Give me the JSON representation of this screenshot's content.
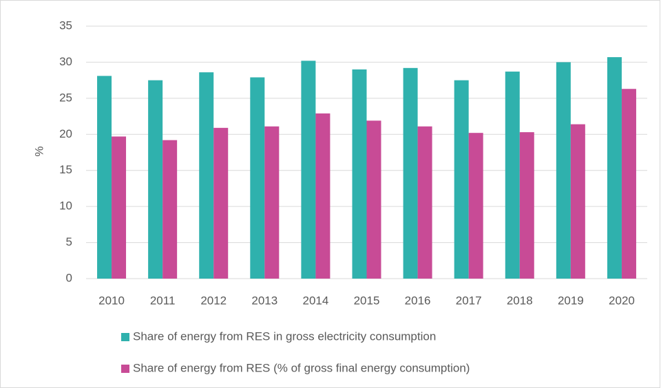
{
  "chart_data": {
    "type": "bar",
    "y_label": "%",
    "categories": [
      "2010",
      "2011",
      "2012",
      "2013",
      "2014",
      "2015",
      "2016",
      "2017",
      "2018",
      "2019",
      "2020"
    ],
    "series": [
      {
        "name": "Share of energy from RES in gross electricity consumption",
        "color": "#2fb1ad",
        "values": [
          28.1,
          27.5,
          28.6,
          27.9,
          30.2,
          29.0,
          29.2,
          27.5,
          28.7,
          30.0,
          30.7
        ]
      },
      {
        "name": "Share of energy from RES (% of gross final energy consumption)",
        "color": "#c84b96",
        "values": [
          19.7,
          19.2,
          20.9,
          21.1,
          22.9,
          21.9,
          21.1,
          20.2,
          20.3,
          21.4,
          26.3
        ]
      }
    ],
    "ylim": [
      0,
      35
    ],
    "yticks": [
      0,
      5,
      10,
      15,
      20,
      25,
      30,
      35
    ],
    "grid": true,
    "legend": "bottom"
  }
}
